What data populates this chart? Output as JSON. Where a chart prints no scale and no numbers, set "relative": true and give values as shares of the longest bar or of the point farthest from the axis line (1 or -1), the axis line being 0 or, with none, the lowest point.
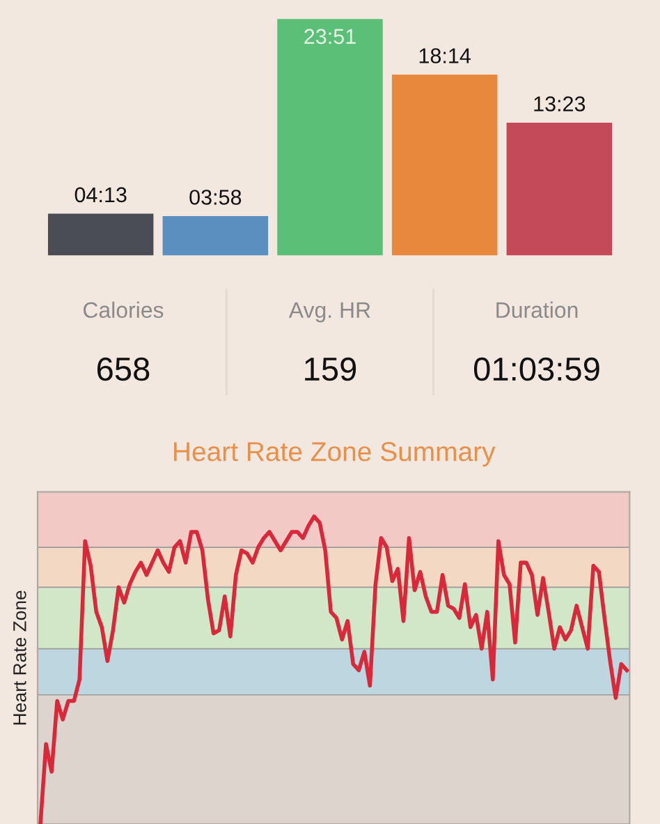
{
  "chart_data": [
    {
      "type": "bar",
      "categories": [
        null,
        null,
        null,
        null,
        null
      ],
      "values": [
        4.2167,
        3.9667,
        23.85,
        18.2333,
        13.3833
      ],
      "colors": [
        "#4a4d55",
        "#5a8fbf",
        "#5cbf78",
        "#e8883c",
        "#c44a5a"
      ],
      "value_labels": [
        "04:13",
        "03:58",
        "23:51",
        "18:14",
        "13:23"
      ]
    },
    {
      "type": "other",
      "annotations": [
        "Calories",
        "658",
        "Avg. HR",
        "159",
        "Duration",
        "01:03:59"
      ]
    },
    {
      "type": "line",
      "relative": true,
      "title": "Heart Rate Zone Summary",
      "ylabel": "Heart Rate Zone",
      "tick_labels": false,
      "categories": [
        null,
        null,
        null,
        null,
        null,
        null,
        null,
        null,
        null,
        null,
        null,
        null,
        null,
        null,
        null,
        null,
        null,
        null,
        null,
        null,
        null,
        null,
        null,
        null,
        null,
        null,
        null,
        null,
        null,
        null,
        null,
        null,
        null,
        null,
        null,
        null,
        null,
        null,
        null,
        null,
        null,
        null,
        null,
        null,
        null,
        null,
        null,
        null,
        null,
        null,
        null,
        null,
        null,
        null,
        null,
        null,
        null,
        null,
        null,
        null,
        null,
        null,
        null,
        null,
        null,
        null,
        null,
        null,
        null,
        null,
        null,
        null,
        null,
        null,
        null,
        null,
        null,
        null,
        null,
        null,
        null,
        null,
        null,
        null,
        null,
        null,
        null,
        null,
        null,
        null,
        null,
        null,
        null,
        null,
        null,
        null,
        null,
        null,
        null,
        null,
        null,
        null,
        null,
        null,
        null,
        null
      ],
      "series": [
        {
          "color": "#d8283a",
          "values": [
            0,
            0.26,
            0.17,
            0.4,
            0.34,
            0.4,
            0.4,
            0.47,
            0.92,
            0.84,
            0.69,
            0.64,
            0.53,
            0.63,
            0.77,
            0.72,
            0.78,
            0.82,
            0.85,
            0.81,
            0.85,
            0.89,
            0.85,
            0.82,
            0.9,
            0.92,
            0.85,
            0.95,
            0.95,
            0.89,
            0.73,
            0.62,
            0.63,
            0.74,
            0.61,
            0.81,
            0.89,
            0.88,
            0.85,
            0.9,
            0.93,
            0.95,
            0.92,
            0.89,
            0.92,
            0.95,
            0.95,
            0.93,
            0.97,
            1.0,
            0.98,
            0.89,
            0.69,
            0.67,
            0.6,
            0.66,
            0.52,
            0.5,
            0.56,
            0.45,
            0.78,
            0.93,
            0.9,
            0.79,
            0.83,
            0.66,
            0.93,
            0.76,
            0.82,
            0.74,
            0.69,
            0.69,
            0.81,
            0.71,
            0.7,
            0.67,
            0.78,
            0.64,
            0.68,
            0.57,
            0.69,
            0.47,
            0.92,
            0.81,
            0.78,
            0.59,
            0.85,
            0.85,
            0.81,
            0.68,
            0.8,
            0.69,
            0.57,
            0.64,
            0.6,
            0.63,
            0.71,
            0.64,
            0.57,
            0.84,
            0.82,
            0.67,
            0.53,
            0.41,
            0.52,
            0.5
          ]
        }
      ],
      "bands": [
        {
          "axis": "y",
          "from": 0,
          "to": 0.42,
          "color": "#ddd4cd"
        },
        {
          "axis": "y",
          "from": 0.42,
          "to": 0.57,
          "color": "#bdd6df"
        },
        {
          "axis": "y",
          "from": 0.57,
          "to": 0.77,
          "color": "#d2e6c8"
        },
        {
          "axis": "y",
          "from": 0.77,
          "to": 0.9,
          "color": "#f3d8c3"
        },
        {
          "axis": "y",
          "from": 0.9,
          "to": 1.08,
          "color": "#f2c9c5"
        }
      ]
    }
  ]
}
